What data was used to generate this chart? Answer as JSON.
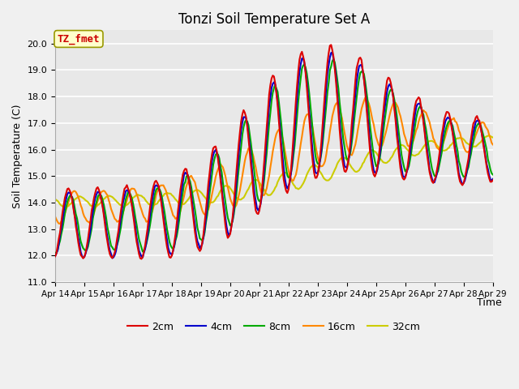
{
  "title": "Tonzi Soil Temperature Set A",
  "xlabel": "Time",
  "ylabel": "Soil Temperature (C)",
  "ylim": [
    11.0,
    20.5
  ],
  "yticks": [
    11.0,
    12.0,
    13.0,
    14.0,
    15.0,
    16.0,
    17.0,
    18.0,
    19.0,
    20.0
  ],
  "annotation_text": "TZ_fmet",
  "annotation_color": "#cc0000",
  "annotation_box_facecolor": "#ffffcc",
  "annotation_box_edgecolor": "#999900",
  "bg_color": "#f0f0f0",
  "plot_bg_color": "#e8e8e8",
  "series": {
    "2cm": {
      "color": "#dd0000",
      "lw": 1.5
    },
    "4cm": {
      "color": "#0000cc",
      "lw": 1.5
    },
    "8cm": {
      "color": "#00aa00",
      "lw": 1.5
    },
    "16cm": {
      "color": "#ff8800",
      "lw": 1.5
    },
    "32cm": {
      "color": "#cccc00",
      "lw": 1.5
    }
  },
  "xtick_labels": [
    "Apr 14",
    "Apr 15",
    "Apr 16",
    "Apr 17",
    "Apr 18",
    "Apr 19",
    "Apr 20",
    "Apr 21",
    "Apr 22",
    "Apr 23",
    "Apr 24",
    "Apr 25",
    "Apr 26",
    "Apr 27",
    "Apr 28",
    "Apr 29"
  ],
  "xtick_positions": [
    0,
    1,
    2,
    3,
    4,
    5,
    6,
    7,
    8,
    9,
    10,
    11,
    12,
    13,
    14,
    15
  ]
}
